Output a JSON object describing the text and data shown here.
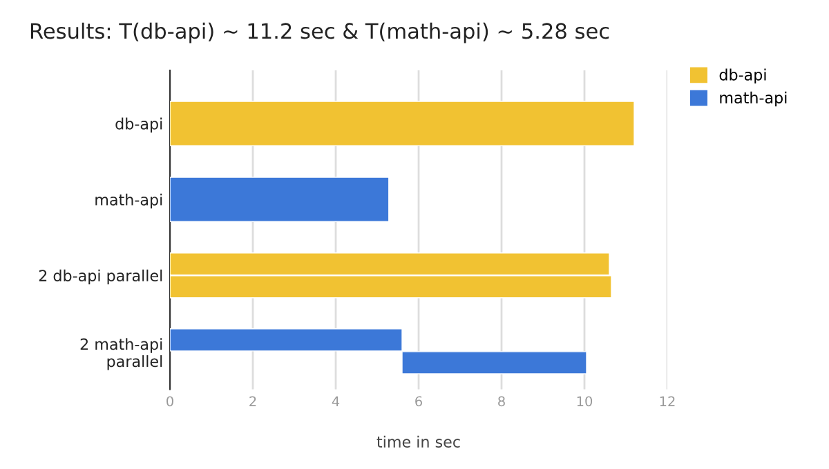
{
  "chart_data": {
    "type": "bar",
    "orientation": "horizontal",
    "title": "Results: T(db-api) ~ 11.2 sec & T(math-api) ~ 5.28 sec",
    "xlabel": "time in sec",
    "categories": [
      "db-api",
      "math-api",
      "2 db-api parallel",
      "2 math-api\nparallel"
    ],
    "series": [
      {
        "name": "db-api",
        "color": "#f1c232",
        "values": [
          11.2,
          null,
          10.6,
          null
        ]
      },
      {
        "color": "#f1c232",
        "values": [
          null,
          null,
          10.65,
          null
        ]
      },
      {
        "name": "math-api",
        "color": "#3c78d8",
        "values": [
          null,
          5.28,
          null,
          5.6
        ]
      },
      {
        "color": "#3c78d8",
        "values": [
          null,
          null,
          null,
          4.45
        ],
        "base": [
          null,
          null,
          null,
          5.6
        ]
      }
    ],
    "xlim": [
      0,
      12
    ],
    "xticks": [
      0,
      2,
      4,
      6,
      8,
      10,
      12
    ],
    "grid": "x",
    "legend": "top right"
  }
}
